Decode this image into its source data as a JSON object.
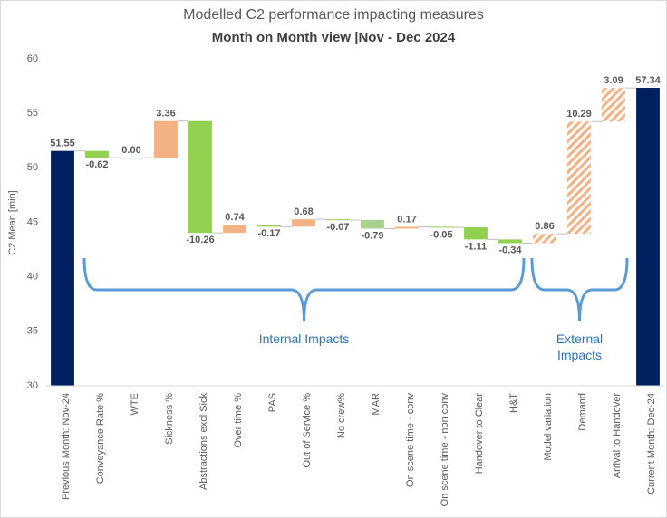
{
  "chart_data": {
    "type": "waterfall",
    "title": "Modelled C2 performance impacting measures",
    "subtitle": "Month on Month view |Nov - Dec 2024",
    "y_label": "C2 Mean [min]",
    "categories": [
      "Previous Month: Nov-24",
      "Conveyance Rate %",
      "WTE",
      "Sickness %",
      "Abstractions excl Sick",
      "Over time %",
      "PAS",
      "Out of Service %",
      "No crew%",
      "MAR",
      "On scene time - conv",
      "On scene time - non conv",
      "Handover to Clear",
      "H&T",
      "Model variation",
      "Demand",
      "Arrival to Handover",
      "Current Month: Dec-24"
    ],
    "values": [
      51.55,
      -0.62,
      0.0,
      3.36,
      -10.26,
      0.74,
      -0.17,
      0.68,
      -0.07,
      -0.79,
      0.17,
      -0.05,
      -1.11,
      -0.34,
      0.86,
      10.29,
      3.09,
      57.34
    ],
    "value_labels": [
      "51.55",
      "-0.62",
      "0.00",
      "3.36",
      "-10.26",
      "0.74",
      "-0.17",
      "0.68",
      "-0.07",
      "-0.79",
      "0.17",
      "-0.05",
      "-1.11",
      "-0.34",
      "0.86",
      "10.29",
      "3.09",
      "57.34"
    ],
    "measures": [
      "absolute",
      "relative",
      "relative",
      "relative",
      "relative",
      "relative",
      "relative",
      "relative",
      "relative",
      "relative",
      "relative",
      "relative",
      "relative",
      "relative",
      "relative",
      "relative",
      "relative",
      "absolute"
    ],
    "colors": [
      "#002060",
      "#92d050",
      "#5b9bd5",
      "#f4b183",
      "#92d050",
      "#f4b183",
      "#92d050",
      "#f4b183",
      "#92d050",
      "#a9d18e",
      "#f4b183",
      "#92d050",
      "#92d050",
      "#92d050",
      "#f4b183",
      "#f4b183",
      "#f4b183",
      "#002060"
    ],
    "groups": [
      {
        "label": "Internal Impacts",
        "from": "Conveyance Rate %",
        "to": "H&T",
        "style": "solid"
      },
      {
        "label": "External Impacts",
        "from": "Model variation",
        "to": "Arrival to Handover",
        "style": "hatched"
      }
    ],
    "ylim": [
      30,
      60
    ],
    "yticks": [
      30,
      35,
      40,
      45,
      50,
      55,
      60
    ],
    "grid": false
  }
}
